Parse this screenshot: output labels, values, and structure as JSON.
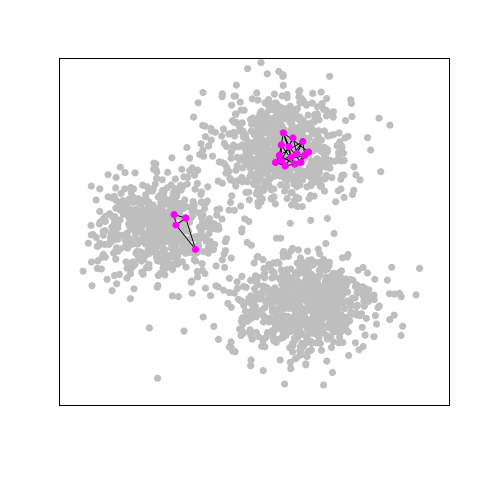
{
  "chart_data": {
    "type": "scatter",
    "title": "",
    "xlabel": "",
    "ylabel": "",
    "xlim": [
      0,
      100
    ],
    "ylim": [
      0,
      100
    ],
    "axes_visible": false,
    "box": true,
    "grid": false,
    "colors": {
      "background_points": "#bebebe",
      "highlight_points": "#ff00ff",
      "edges": "#000000",
      "frame": "#000000"
    },
    "clusters": [
      {
        "center": [
          57.5,
          74.5
        ],
        "sd": [
          8.5,
          8.0
        ],
        "count": 700
      },
      {
        "center": [
          26.0,
          51.0
        ],
        "sd": [
          8.0,
          7.2
        ],
        "count": 600
      },
      {
        "center": [
          62.5,
          29.0
        ],
        "sd": [
          9.5,
          7.5
        ],
        "count": 700
      }
    ],
    "series": [
      {
        "role": "highlight",
        "points": [
          [
            57.5,
            78.5
          ],
          [
            60.0,
            77.0
          ],
          [
            62.5,
            76.0
          ],
          [
            57.0,
            75.0
          ],
          [
            59.0,
            74.5
          ],
          [
            61.0,
            72.5
          ],
          [
            56.5,
            72.0
          ],
          [
            59.5,
            71.5
          ],
          [
            63.0,
            72.0
          ],
          [
            57.0,
            70.5
          ],
          [
            55.5,
            70.0
          ],
          [
            58.0,
            69.0
          ],
          [
            62.0,
            70.0
          ],
          [
            60.5,
            69.5
          ],
          [
            64.0,
            73.0
          ],
          [
            29.5,
            55.0
          ],
          [
            32.5,
            54.0
          ],
          [
            30.0,
            52.0
          ],
          [
            35.0,
            45.0
          ]
        ],
        "edges": [
          [
            0,
            3
          ],
          [
            0,
            4
          ],
          [
            1,
            4
          ],
          [
            1,
            5
          ],
          [
            2,
            5
          ],
          [
            2,
            8
          ],
          [
            3,
            6
          ],
          [
            3,
            9
          ],
          [
            4,
            7
          ],
          [
            5,
            8
          ],
          [
            6,
            9
          ],
          [
            6,
            10
          ],
          [
            7,
            11
          ],
          [
            7,
            13
          ],
          [
            8,
            12
          ],
          [
            9,
            10
          ],
          [
            10,
            11
          ],
          [
            11,
            13
          ],
          [
            12,
            14
          ],
          [
            13,
            14
          ],
          [
            0,
            7
          ],
          [
            1,
            9
          ],
          [
            2,
            6
          ],
          [
            3,
            13
          ],
          [
            4,
            12
          ],
          [
            5,
            10
          ],
          [
            14,
            0
          ],
          [
            11,
            2
          ],
          [
            8,
            9
          ],
          [
            6,
            13
          ],
          [
            15,
            17
          ],
          [
            16,
            17
          ],
          [
            15,
            16
          ],
          [
            16,
            18
          ],
          [
            17,
            18
          ]
        ]
      }
    ]
  }
}
